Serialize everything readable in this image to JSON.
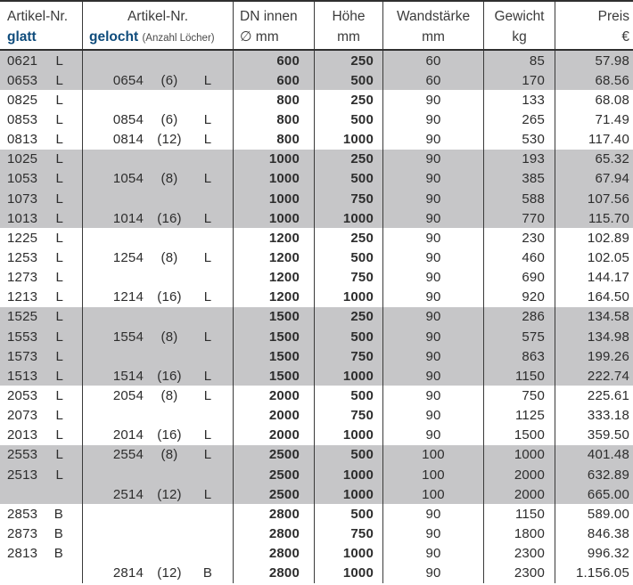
{
  "colors": {
    "accent_blue": "#0f4c7c",
    "row_shade": "#c6c6c8",
    "border": "#3a3a3a",
    "text": "#2d2d2d"
  },
  "table": {
    "columns": [
      {
        "line1": "Artikel-Nr.",
        "line2": "glatt"
      },
      {
        "line1": "Artikel-Nr.",
        "line2": "gelocht",
        "note": "(Anzahl Löcher)"
      },
      {
        "line1": "DN innen",
        "line2": "∅ mm"
      },
      {
        "line1": "Höhe",
        "line2": "mm"
      },
      {
        "line1": "Wandstärke",
        "line2": "mm"
      },
      {
        "line1": "Gewicht",
        "line2": "kg"
      },
      {
        "line1": "Preis",
        "line2": "€"
      }
    ],
    "rows": [
      {
        "glatt": "0621",
        "glatt_letter": "L",
        "gelocht": "",
        "gelocht_holes": "",
        "gelocht_letter": "",
        "dn": "600",
        "hoehe": "250",
        "wand": "60",
        "gewicht": "85",
        "preis": "57.98",
        "shaded": true
      },
      {
        "glatt": "0653",
        "glatt_letter": "L",
        "gelocht": "0654",
        "gelocht_holes": "(6)",
        "gelocht_letter": "L",
        "dn": "600",
        "hoehe": "500",
        "wand": "60",
        "gewicht": "170",
        "preis": "68.56",
        "shaded": true
      },
      {
        "glatt": "0825",
        "glatt_letter": "L",
        "gelocht": "",
        "gelocht_holes": "",
        "gelocht_letter": "",
        "dn": "800",
        "hoehe": "250",
        "wand": "90",
        "gewicht": "133",
        "preis": "68.08",
        "shaded": false
      },
      {
        "glatt": "0853",
        "glatt_letter": "L",
        "gelocht": "0854",
        "gelocht_holes": "(6)",
        "gelocht_letter": "L",
        "dn": "800",
        "hoehe": "500",
        "wand": "90",
        "gewicht": "265",
        "preis": "71.49",
        "shaded": false
      },
      {
        "glatt": "0813",
        "glatt_letter": "L",
        "gelocht": "0814",
        "gelocht_holes": "(12)",
        "gelocht_letter": "L",
        "dn": "800",
        "hoehe": "1000",
        "wand": "90",
        "gewicht": "530",
        "preis": "117.40",
        "shaded": false
      },
      {
        "glatt": "1025",
        "glatt_letter": "L",
        "gelocht": "",
        "gelocht_holes": "",
        "gelocht_letter": "",
        "dn": "1000",
        "hoehe": "250",
        "wand": "90",
        "gewicht": "193",
        "preis": "65.32",
        "shaded": true
      },
      {
        "glatt": "1053",
        "glatt_letter": "L",
        "gelocht": "1054",
        "gelocht_holes": "(8)",
        "gelocht_letter": "L",
        "dn": "1000",
        "hoehe": "500",
        "wand": "90",
        "gewicht": "385",
        "preis": "67.94",
        "shaded": true
      },
      {
        "glatt": "1073",
        "glatt_letter": "L",
        "gelocht": "",
        "gelocht_holes": "",
        "gelocht_letter": "",
        "dn": "1000",
        "hoehe": "750",
        "wand": "90",
        "gewicht": "588",
        "preis": "107.56",
        "shaded": true
      },
      {
        "glatt": "1013",
        "glatt_letter": "L",
        "gelocht": "1014",
        "gelocht_holes": "(16)",
        "gelocht_letter": "L",
        "dn": "1000",
        "hoehe": "1000",
        "wand": "90",
        "gewicht": "770",
        "preis": "115.70",
        "shaded": true
      },
      {
        "glatt": "1225",
        "glatt_letter": "L",
        "gelocht": "",
        "gelocht_holes": "",
        "gelocht_letter": "",
        "dn": "1200",
        "hoehe": "250",
        "wand": "90",
        "gewicht": "230",
        "preis": "102.89",
        "shaded": false
      },
      {
        "glatt": "1253",
        "glatt_letter": "L",
        "gelocht": "1254",
        "gelocht_holes": "(8)",
        "gelocht_letter": "L",
        "dn": "1200",
        "hoehe": "500",
        "wand": "90",
        "gewicht": "460",
        "preis": "102.05",
        "shaded": false
      },
      {
        "glatt": "1273",
        "glatt_letter": "L",
        "gelocht": "",
        "gelocht_holes": "",
        "gelocht_letter": "",
        "dn": "1200",
        "hoehe": "750",
        "wand": "90",
        "gewicht": "690",
        "preis": "144.17",
        "shaded": false
      },
      {
        "glatt": "1213",
        "glatt_letter": "L",
        "gelocht": "1214",
        "gelocht_holes": "(16)",
        "gelocht_letter": "L",
        "dn": "1200",
        "hoehe": "1000",
        "wand": "90",
        "gewicht": "920",
        "preis": "164.50",
        "shaded": false
      },
      {
        "glatt": "1525",
        "glatt_letter": "L",
        "gelocht": "",
        "gelocht_holes": "",
        "gelocht_letter": "",
        "dn": "1500",
        "hoehe": "250",
        "wand": "90",
        "gewicht": "286",
        "preis": "134.58",
        "shaded": true
      },
      {
        "glatt": "1553",
        "glatt_letter": "L",
        "gelocht": "1554",
        "gelocht_holes": "(8)",
        "gelocht_letter": "L",
        "dn": "1500",
        "hoehe": "500",
        "wand": "90",
        "gewicht": "575",
        "preis": "134.98",
        "shaded": true
      },
      {
        "glatt": "1573",
        "glatt_letter": "L",
        "gelocht": "",
        "gelocht_holes": "",
        "gelocht_letter": "",
        "dn": "1500",
        "hoehe": "750",
        "wand": "90",
        "gewicht": "863",
        "preis": "199.26",
        "shaded": true
      },
      {
        "glatt": "1513",
        "glatt_letter": "L",
        "gelocht": "1514",
        "gelocht_holes": "(16)",
        "gelocht_letter": "L",
        "dn": "1500",
        "hoehe": "1000",
        "wand": "90",
        "gewicht": "1150",
        "preis": "222.74",
        "shaded": true
      },
      {
        "glatt": "2053",
        "glatt_letter": "L",
        "gelocht": "2054",
        "gelocht_holes": "(8)",
        "gelocht_letter": "L",
        "dn": "2000",
        "hoehe": "500",
        "wand": "90",
        "gewicht": "750",
        "preis": "225.61",
        "shaded": false
      },
      {
        "glatt": "2073",
        "glatt_letter": "L",
        "gelocht": "",
        "gelocht_holes": "",
        "gelocht_letter": "",
        "dn": "2000",
        "hoehe": "750",
        "wand": "90",
        "gewicht": "1125",
        "preis": "333.18",
        "shaded": false
      },
      {
        "glatt": "2013",
        "glatt_letter": "L",
        "gelocht": "2014",
        "gelocht_holes": "(16)",
        "gelocht_letter": "L",
        "dn": "2000",
        "hoehe": "1000",
        "wand": "90",
        "gewicht": "1500",
        "preis": "359.50",
        "shaded": false
      },
      {
        "glatt": "2553",
        "glatt_letter": "L",
        "gelocht": "2554",
        "gelocht_holes": "(8)",
        "gelocht_letter": "L",
        "dn": "2500",
        "hoehe": "500",
        "wand": "100",
        "gewicht": "1000",
        "preis": "401.48",
        "shaded": true
      },
      {
        "glatt": "2513",
        "glatt_letter": "L",
        "gelocht": "",
        "gelocht_holes": "",
        "gelocht_letter": "",
        "dn": "2500",
        "hoehe": "1000",
        "wand": "100",
        "gewicht": "2000",
        "preis": "632.89",
        "shaded": true
      },
      {
        "glatt": "",
        "glatt_letter": "",
        "gelocht": "2514",
        "gelocht_holes": "(12)",
        "gelocht_letter": "L",
        "dn": "2500",
        "hoehe": "1000",
        "wand": "100",
        "gewicht": "2000",
        "preis": "665.00",
        "shaded": true
      },
      {
        "glatt": "2853",
        "glatt_letter": "B",
        "gelocht": "",
        "gelocht_holes": "",
        "gelocht_letter": "",
        "dn": "2800",
        "hoehe": "500",
        "wand": "90",
        "gewicht": "1150",
        "preis": "589.00",
        "shaded": false
      },
      {
        "glatt": "2873",
        "glatt_letter": "B",
        "gelocht": "",
        "gelocht_holes": "",
        "gelocht_letter": "",
        "dn": "2800",
        "hoehe": "750",
        "wand": "90",
        "gewicht": "1800",
        "preis": "846.38",
        "shaded": false
      },
      {
        "glatt": "2813",
        "glatt_letter": "B",
        "gelocht": "",
        "gelocht_holes": "",
        "gelocht_letter": "",
        "dn": "2800",
        "hoehe": "1000",
        "wand": "90",
        "gewicht": "2300",
        "preis": "996.32",
        "shaded": false
      },
      {
        "glatt": "",
        "glatt_letter": "",
        "gelocht": "2814",
        "gelocht_holes": "(12)",
        "gelocht_letter": "B",
        "dn": "2800",
        "hoehe": "1000",
        "wand": "90",
        "gewicht": "2300",
        "preis": "1.156.05",
        "shaded": false
      }
    ]
  }
}
